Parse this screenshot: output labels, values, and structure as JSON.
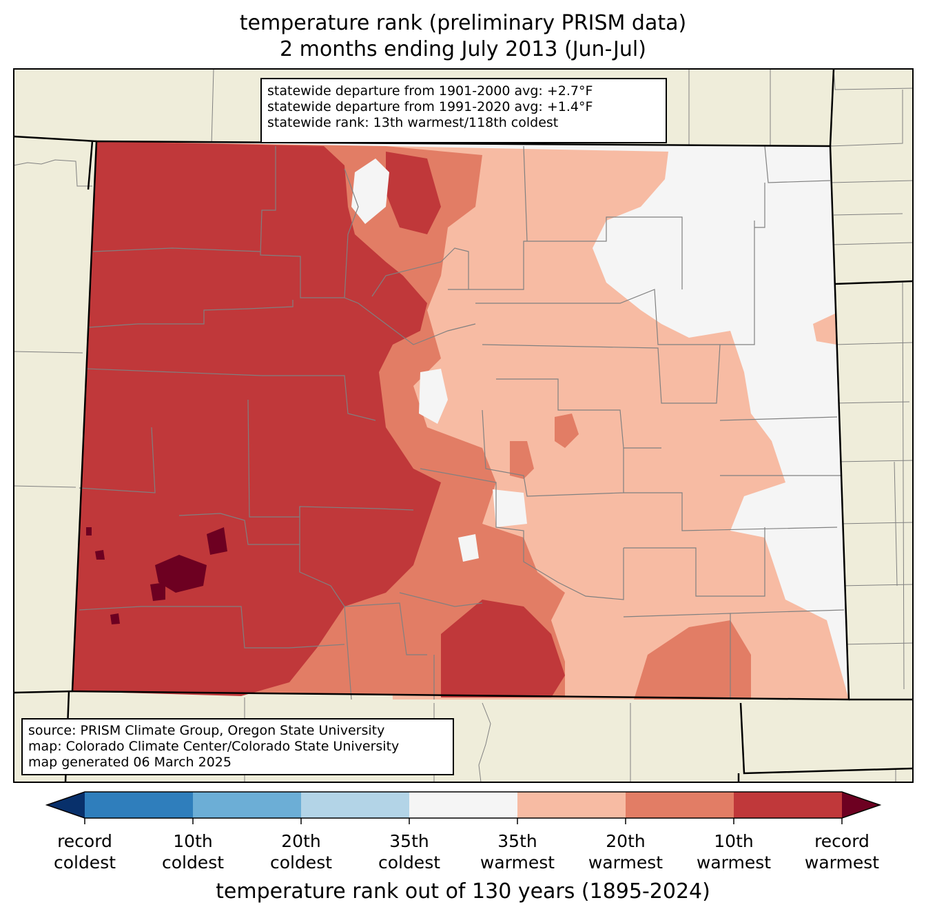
{
  "title": {
    "line1": "temperature rank (preliminary PRISM data)",
    "line2": "2 months ending July 2013 (Jun-Jul)"
  },
  "stats_box": {
    "line1": "statewide departure from 1901-2000 avg: +2.7°F",
    "line2": "statewide departure from 1991-2020 avg: +1.4°F",
    "line3": "statewide rank: 13th warmest/118th coldest"
  },
  "source_box": {
    "line1": "source: PRISM Climate Group, Oregon State University",
    "line2": "map: Colorado Climate Center/Colorado State University",
    "line3": "map generated 06 March 2025"
  },
  "colorbar": {
    "title": "temperature rank out of 130 years (1895-2024)",
    "ticks": [
      {
        "l1": "record",
        "l2": "coldest"
      },
      {
        "l1": "10th",
        "l2": "coldest"
      },
      {
        "l1": "20th",
        "l2": "coldest"
      },
      {
        "l1": "35th",
        "l2": "coldest"
      },
      {
        "l1": "35th",
        "l2": "warmest"
      },
      {
        "l1": "20th",
        "l2": "warmest"
      },
      {
        "l1": "10th",
        "l2": "warmest"
      },
      {
        "l1": "record",
        "l2": "warmest"
      }
    ],
    "colors": {
      "below_record_cold": "#08306b",
      "record_to_10th_cold": "#2f7ebc",
      "10th_to_20th_cold": "#6caed6",
      "20th_to_35th_cold": "#b3d4e7",
      "near_normal": "#f5f5f5",
      "35th_to_20th_warm": "#f7bba3",
      "20th_to_10th_warm": "#e27d65",
      "10th_to_record_warm": "#c0383a",
      "record_warm": "#6d0021"
    }
  },
  "map_colors": {
    "background_land": "#efedda",
    "state_border": "#000000",
    "county_border": "#808080"
  }
}
